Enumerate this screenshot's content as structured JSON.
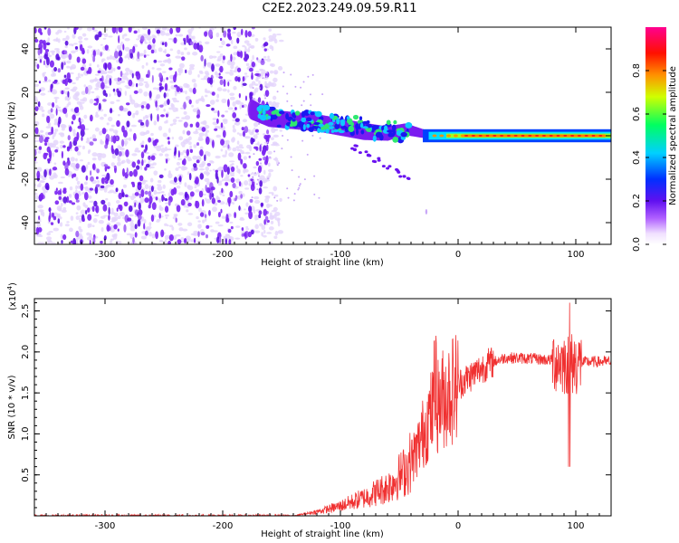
{
  "title": "C2E2.2023.249.09.59.R11",
  "colors": {
    "snr_line": "#f03030",
    "dense_blob": "#7a1cf0",
    "faint_noise": "#d8c0f8"
  },
  "chart_data": [
    {
      "type": "heatmap",
      "xlabel": "Height of straight line (km)",
      "ylabel": "Frequency (Hz)",
      "xlim": [
        -360,
        130
      ],
      "ylim": [
        -50,
        50
      ],
      "xticks": [
        -300,
        -200,
        -100,
        0,
        100
      ],
      "yticks": [
        -40,
        -20,
        0,
        20,
        40
      ],
      "colorbar": {
        "label": "Normalized spectral amplitude",
        "range": [
          0.0,
          1.0
        ],
        "ticks": [
          0.0,
          0.2,
          0.4,
          0.6,
          0.8
        ],
        "colormap": "rainbow (white, violet, blue, cyan, green, yellow, orange, red, magenta)"
      },
      "features": {
        "broadband_noise_x_range": [
          -360,
          -160
        ],
        "signal_line_frequency": 0,
        "signal_onset_x": -175
      }
    },
    {
      "type": "line",
      "xlabel": "Height of straight line (km)",
      "ylabel": "SNR (10 * v/v)",
      "y_multiplier": "(x10",
      "y_multiplier_exp": "4",
      "xlim": [
        -360,
        130
      ],
      "ylim": [
        0,
        2.65
      ],
      "xticks": [
        -300,
        -200,
        -100,
        0,
        100
      ],
      "yticks": [
        0.5,
        1.0,
        1.5,
        2.0,
        2.5
      ],
      "envelope": [
        [
          -360,
          0.0
        ],
        [
          -140,
          0.0
        ],
        [
          -120,
          0.05
        ],
        [
          -100,
          0.12
        ],
        [
          -80,
          0.22
        ],
        [
          -60,
          0.35
        ],
        [
          -45,
          0.55
        ],
        [
          -35,
          0.8
        ],
        [
          -25,
          1.2
        ],
        [
          -15,
          1.4
        ],
        [
          -5,
          1.55
        ],
        [
          10,
          1.7
        ],
        [
          25,
          1.85
        ],
        [
          40,
          1.93
        ],
        [
          60,
          1.92
        ],
        [
          80,
          1.9
        ],
        [
          95,
          1.85
        ],
        [
          110,
          1.88
        ],
        [
          130,
          1.88
        ]
      ]
    }
  ]
}
